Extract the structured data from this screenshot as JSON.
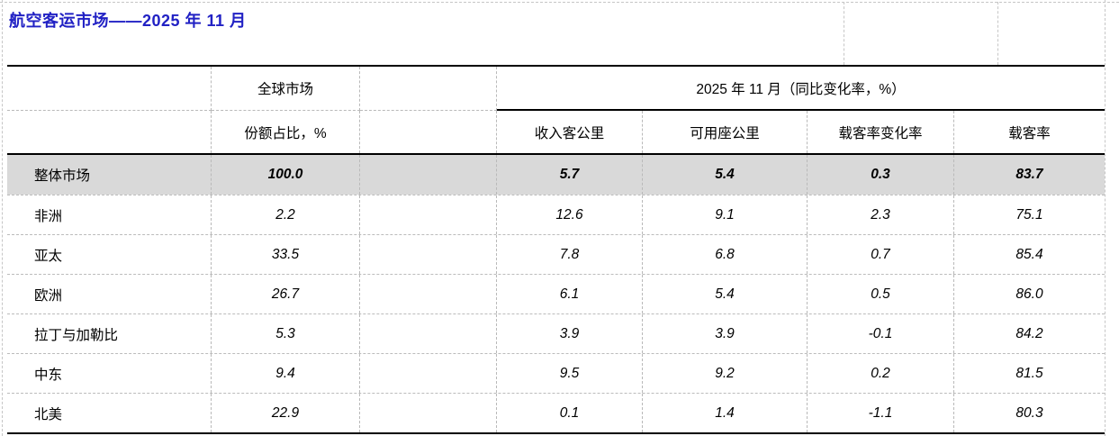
{
  "title": "航空客运市场——2025 年 11 月",
  "colors": {
    "title_blue": "#2121c4",
    "highlight_row_bg": "#d9d9d9",
    "border_black": "#000000",
    "grid_dashed_gray": "#b9b9b9"
  },
  "table": {
    "header": {
      "global_market": "全球市场",
      "share_label": "份额占比，%",
      "period_group": "2025 年 11 月（同比变化率，%）",
      "metrics": [
        "收入客公里",
        "可用座公里",
        "载客率变化率",
        "载客率"
      ]
    },
    "rows": [
      {
        "region": "整体市场",
        "share": "100.0",
        "rpk": "5.7",
        "ask": "5.4",
        "plf_change": "0.3",
        "plf": "83.7",
        "highlight": true
      },
      {
        "region": "非洲",
        "share": "2.2",
        "rpk": "12.6",
        "ask": "9.1",
        "plf_change": "2.3",
        "plf": "75.1"
      },
      {
        "region": "亚太",
        "share": "33.5",
        "rpk": "7.8",
        "ask": "6.8",
        "plf_change": "0.7",
        "plf": "85.4"
      },
      {
        "region": "欧洲",
        "share": "26.7",
        "rpk": "6.1",
        "ask": "5.4",
        "plf_change": "0.5",
        "plf": "86.0"
      },
      {
        "region": "拉丁与加勒比",
        "share": "5.3",
        "rpk": "3.9",
        "ask": "3.9",
        "plf_change": "-0.1",
        "plf": "84.2"
      },
      {
        "region": "中东",
        "share": "9.4",
        "rpk": "9.5",
        "ask": "9.2",
        "plf_change": "0.2",
        "plf": "81.5"
      },
      {
        "region": "北美",
        "share": "22.9",
        "rpk": "0.1",
        "ask": "1.4",
        "plf_change": "-1.1",
        "plf": "80.3"
      }
    ]
  }
}
